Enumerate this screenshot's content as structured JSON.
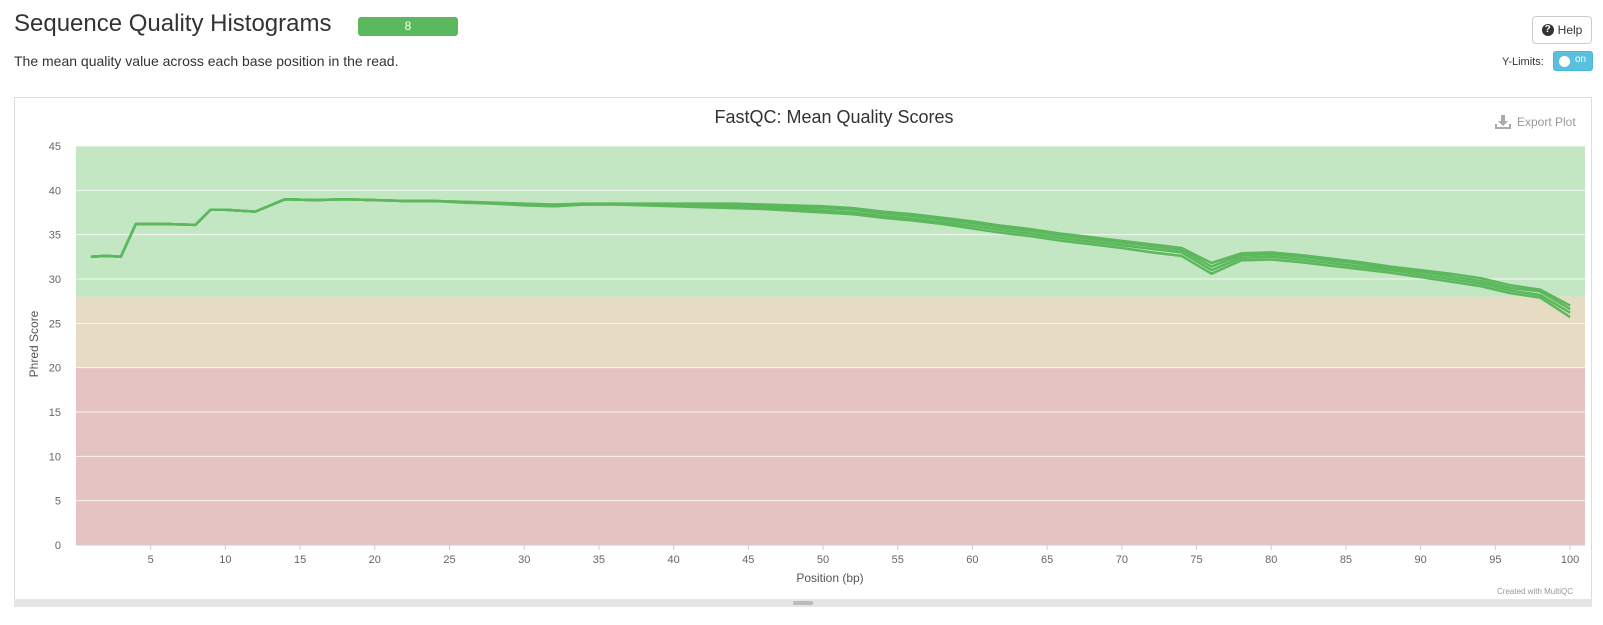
{
  "header": {
    "title": "Sequence Quality Histograms",
    "badge": "8",
    "help_label": "Help",
    "subtitle": "The mean quality value across each base position in the read."
  },
  "controls": {
    "ylimits_label": "Y-Limits:",
    "ylimits_state": "on"
  },
  "plot": {
    "export_label": "Export Plot",
    "credit": "Created with MultiQC"
  },
  "colors": {
    "line": "#5cb85c",
    "band_good": "#c3e6c3",
    "band_warn": "#e6dcc3",
    "band_fail": "#e6c3c3",
    "badge": "#5cb85c",
    "toggle": "#5bc0de"
  },
  "chart_data": {
    "type": "line",
    "title": "FastQC: Mean Quality Scores",
    "xlabel": "Position (bp)",
    "ylabel": "Phred Score",
    "xlim": [
      0,
      101
    ],
    "ylim": [
      0,
      45
    ],
    "xticks": [
      5,
      10,
      15,
      20,
      25,
      30,
      35,
      40,
      45,
      50,
      55,
      60,
      65,
      70,
      75,
      80,
      85,
      90,
      95,
      100
    ],
    "yticks": [
      0,
      5,
      10,
      15,
      20,
      25,
      30,
      35,
      40,
      45
    ],
    "grid": true,
    "bands": [
      {
        "from": 28,
        "to": 45,
        "color": "#c3e6c3"
      },
      {
        "from": 20,
        "to": 28,
        "color": "#e6dcc3"
      },
      {
        "from": 0,
        "to": 20,
        "color": "#e6c3c3"
      }
    ],
    "x": [
      1,
      2,
      3,
      4,
      6,
      8,
      9,
      10,
      12,
      14,
      16,
      18,
      20,
      22,
      24,
      26,
      28,
      30,
      32,
      34,
      36,
      38,
      40,
      42,
      44,
      46,
      48,
      50,
      52,
      54,
      56,
      58,
      60,
      62,
      64,
      66,
      68,
      70,
      72,
      74,
      76,
      78,
      80,
      82,
      84,
      86,
      88,
      90,
      92,
      94,
      96,
      98,
      100
    ],
    "series": [
      {
        "values": [
          32.5,
          32.6,
          32.5,
          36.2,
          36.2,
          36.1,
          37.8,
          37.8,
          37.6,
          39.0,
          38.9,
          39.0,
          38.9,
          38.8,
          38.8,
          38.7,
          38.6,
          38.5,
          38.4,
          38.5,
          38.5,
          38.5,
          38.5,
          38.5,
          38.5,
          38.4,
          38.3,
          38.2,
          38.0,
          37.6,
          37.3,
          36.9,
          36.5,
          36.0,
          35.6,
          35.1,
          34.7,
          34.3,
          33.9,
          33.5,
          31.8,
          32.9,
          33.0,
          32.7,
          32.3,
          31.9,
          31.4,
          31.0,
          30.6,
          30.1,
          29.3,
          28.8,
          27.0
        ]
      },
      {
        "values": [
          32.5,
          32.6,
          32.5,
          36.2,
          36.2,
          36.1,
          37.8,
          37.8,
          37.6,
          39.0,
          38.9,
          39.0,
          38.9,
          38.8,
          38.8,
          38.7,
          38.6,
          38.4,
          38.3,
          38.4,
          38.5,
          38.4,
          38.4,
          38.3,
          38.3,
          38.2,
          38.1,
          38.0,
          37.8,
          37.4,
          37.1,
          36.7,
          36.3,
          35.8,
          35.4,
          34.9,
          34.5,
          34.1,
          33.7,
          33.3,
          31.4,
          32.7,
          32.8,
          32.5,
          32.1,
          31.7,
          31.2,
          30.8,
          30.3,
          29.8,
          29.0,
          28.6,
          26.6
        ]
      },
      {
        "values": [
          32.5,
          32.6,
          32.5,
          36.2,
          36.2,
          36.1,
          37.8,
          37.8,
          37.6,
          39.0,
          38.9,
          39.0,
          38.9,
          38.8,
          38.8,
          38.7,
          38.5,
          38.4,
          38.2,
          38.4,
          38.4,
          38.4,
          38.3,
          38.2,
          38.1,
          38.0,
          37.9,
          37.7,
          37.5,
          37.1,
          36.8,
          36.4,
          36.0,
          35.5,
          35.1,
          34.6,
          34.2,
          33.8,
          33.4,
          33.0,
          31.0,
          32.4,
          32.5,
          32.2,
          31.8,
          31.4,
          31.0,
          30.5,
          30.0,
          29.5,
          28.7,
          28.2,
          26.2
        ]
      },
      {
        "values": [
          32.5,
          32.6,
          32.5,
          36.2,
          36.2,
          36.1,
          37.8,
          37.8,
          37.6,
          39.0,
          38.9,
          39.0,
          38.9,
          38.8,
          38.8,
          38.6,
          38.5,
          38.3,
          38.2,
          38.4,
          38.4,
          38.3,
          38.2,
          38.1,
          38.0,
          37.9,
          37.7,
          37.5,
          37.3,
          36.9,
          36.6,
          36.2,
          35.7,
          35.2,
          34.8,
          34.3,
          33.9,
          33.5,
          33.0,
          32.6,
          30.6,
          32.1,
          32.2,
          31.9,
          31.5,
          31.1,
          30.7,
          30.2,
          29.7,
          29.2,
          28.4,
          27.9,
          25.7
        ]
      }
    ]
  }
}
